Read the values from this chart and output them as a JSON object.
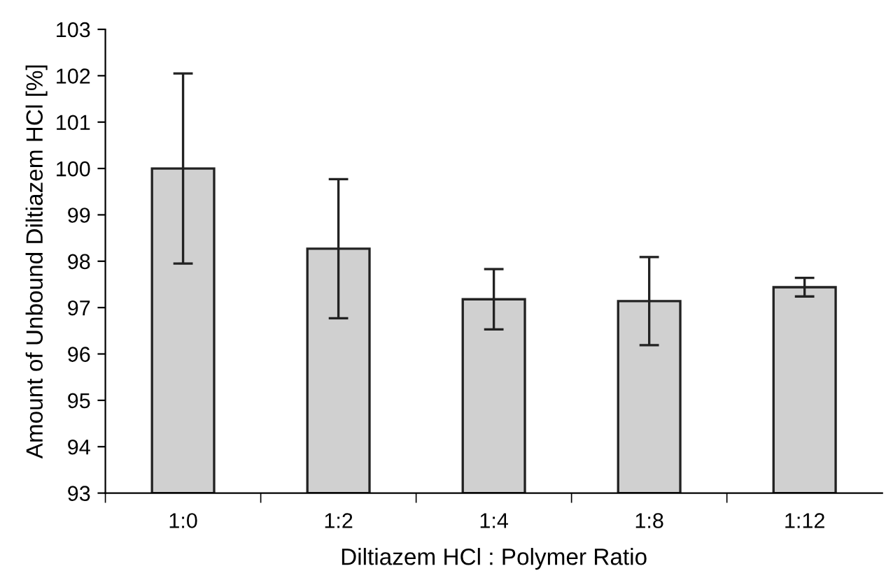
{
  "chart_data": {
    "type": "bar",
    "xlabel": "Diltiazem HCl : Polymer Ratio",
    "ylabel": "Amount of Unbound Diltiazem HCl [%]",
    "categories": [
      "1:0",
      "1:2",
      "1:4",
      "1:8",
      "1:12"
    ],
    "values": [
      100.0,
      98.27,
      97.18,
      97.14,
      97.44
    ],
    "errors": [
      2.05,
      1.5,
      0.65,
      0.95,
      0.2
    ],
    "color": "#d0d0d0",
    "ylim": [
      93,
      103
    ],
    "yticks": [
      93,
      94,
      95,
      96,
      97,
      98,
      99,
      100,
      101,
      102,
      103
    ],
    "grid": false
  }
}
